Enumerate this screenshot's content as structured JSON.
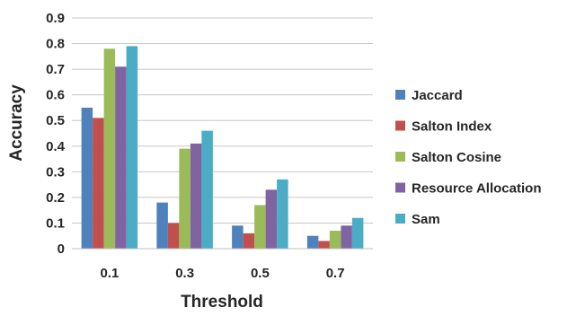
{
  "chart_data": {
    "type": "bar",
    "title": "",
    "xlabel": "Threshold",
    "ylabel": "Accuracy",
    "categories": [
      "0.1",
      "0.3",
      "0.5",
      "0.7"
    ],
    "ylim": [
      0,
      0.9
    ],
    "yticks": [
      "0",
      "0.1",
      "0.2",
      "0.3",
      "0.4",
      "0.5",
      "0.6",
      "0.7",
      "0.8",
      "0.9"
    ],
    "grid": "horizontal",
    "legend_position": "right",
    "series": [
      {
        "name": "Jaccard",
        "color": "#4f81bd",
        "values": [
          0.55,
          0.18,
          0.09,
          0.05
        ]
      },
      {
        "name": "Salton Index",
        "color": "#c0504d",
        "values": [
          0.51,
          0.1,
          0.06,
          0.03
        ]
      },
      {
        "name": "Salton Cosine",
        "color": "#9bbb59",
        "values": [
          0.78,
          0.39,
          0.17,
          0.07
        ]
      },
      {
        "name": "Resource Allocation",
        "color": "#8064a2",
        "values": [
          0.71,
          0.41,
          0.23,
          0.09
        ]
      },
      {
        "name": "Sam",
        "color": "#4bacc6",
        "values": [
          0.79,
          0.46,
          0.27,
          0.12
        ]
      }
    ]
  }
}
